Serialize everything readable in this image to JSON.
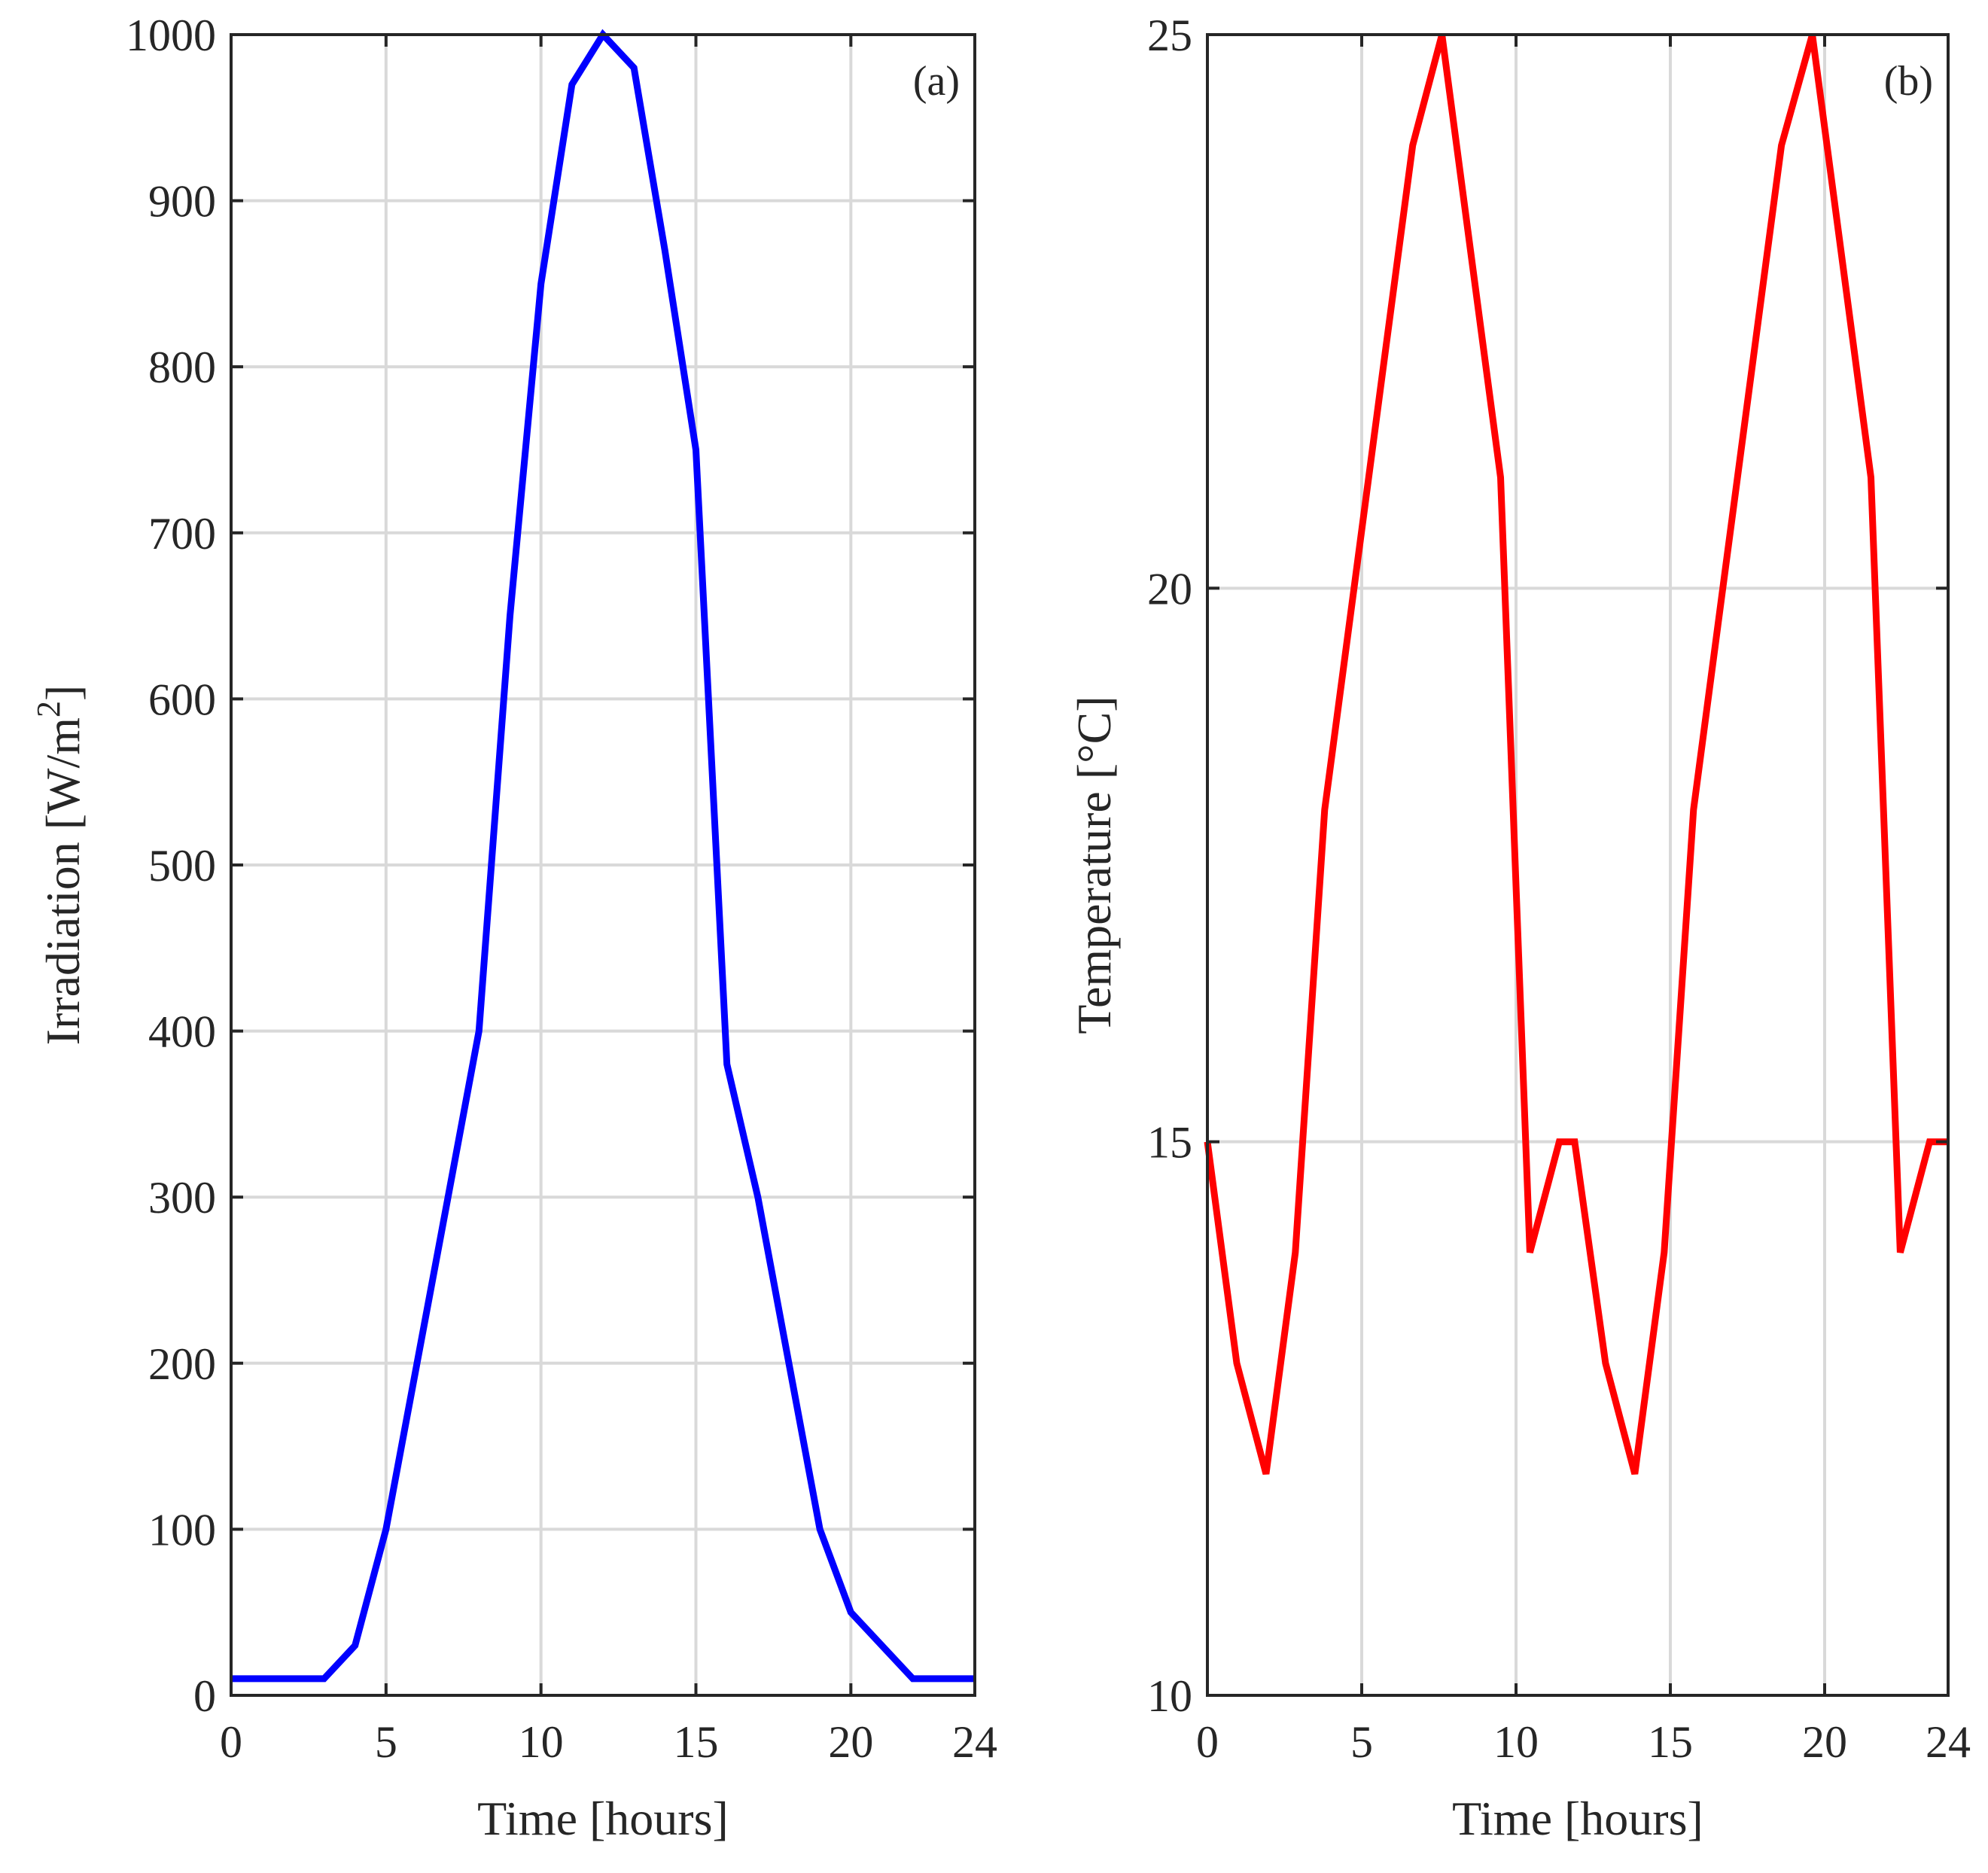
{
  "chart_data": [
    {
      "type": "line",
      "panel_label": "(a)",
      "xlabel": "Time [hours]",
      "ylabel_main": "Irradiation [W/m",
      "ylabel_sup": "2",
      "ylabel_end": "]",
      "xlim": [
        0,
        24
      ],
      "ylim": [
        0,
        1000
      ],
      "xticks": [
        0,
        5,
        10,
        15,
        20,
        24
      ],
      "yticks": [
        0,
        100,
        200,
        300,
        400,
        500,
        600,
        700,
        800,
        900,
        1000
      ],
      "grid": true,
      "series": [
        {
          "name": "Irradiation",
          "color": "#0000ff",
          "x": [
            0,
            1,
            2,
            3,
            4,
            5,
            6,
            7,
            8,
            9,
            10,
            11,
            12,
            13,
            14,
            15,
            16,
            17,
            18,
            19,
            20,
            21,
            22,
            23,
            24
          ],
          "y": [
            10,
            10,
            10,
            10,
            30,
            100,
            200,
            300,
            400,
            650,
            850,
            970,
            1000,
            980,
            870,
            750,
            380,
            300,
            200,
            100,
            50,
            30,
            10,
            10,
            10
          ]
        }
      ]
    },
    {
      "type": "line",
      "panel_label": "(b)",
      "xlabel": "Time [hours]",
      "ylabel": "Temperature [°C]",
      "xlim": [
        0,
        24
      ],
      "ylim": [
        10,
        25
      ],
      "xticks": [
        0,
        5,
        10,
        15,
        20,
        24
      ],
      "yticks": [
        10,
        15,
        20,
        25
      ],
      "grid": true,
      "series": [
        {
          "name": "Temperature",
          "color": "#ff0000",
          "x": [
            0,
            0.95,
            1.9,
            2.85,
            3.8,
            4.75,
            5.7,
            6.65,
            7.6,
            8.55,
            9.5,
            10.45,
            11.4,
            11.9,
            12.9,
            13.85,
            14.8,
            15.75,
            16.7,
            17.65,
            18.6,
            19.6,
            20.55,
            21.5,
            22.45,
            23.4,
            24
          ],
          "y": [
            15,
            13,
            12,
            14,
            18,
            20,
            22,
            24,
            25,
            23,
            21,
            14,
            15,
            15,
            13,
            12,
            14,
            18,
            20,
            22,
            24,
            25,
            23,
            21,
            14,
            15,
            15
          ]
        }
      ]
    }
  ]
}
